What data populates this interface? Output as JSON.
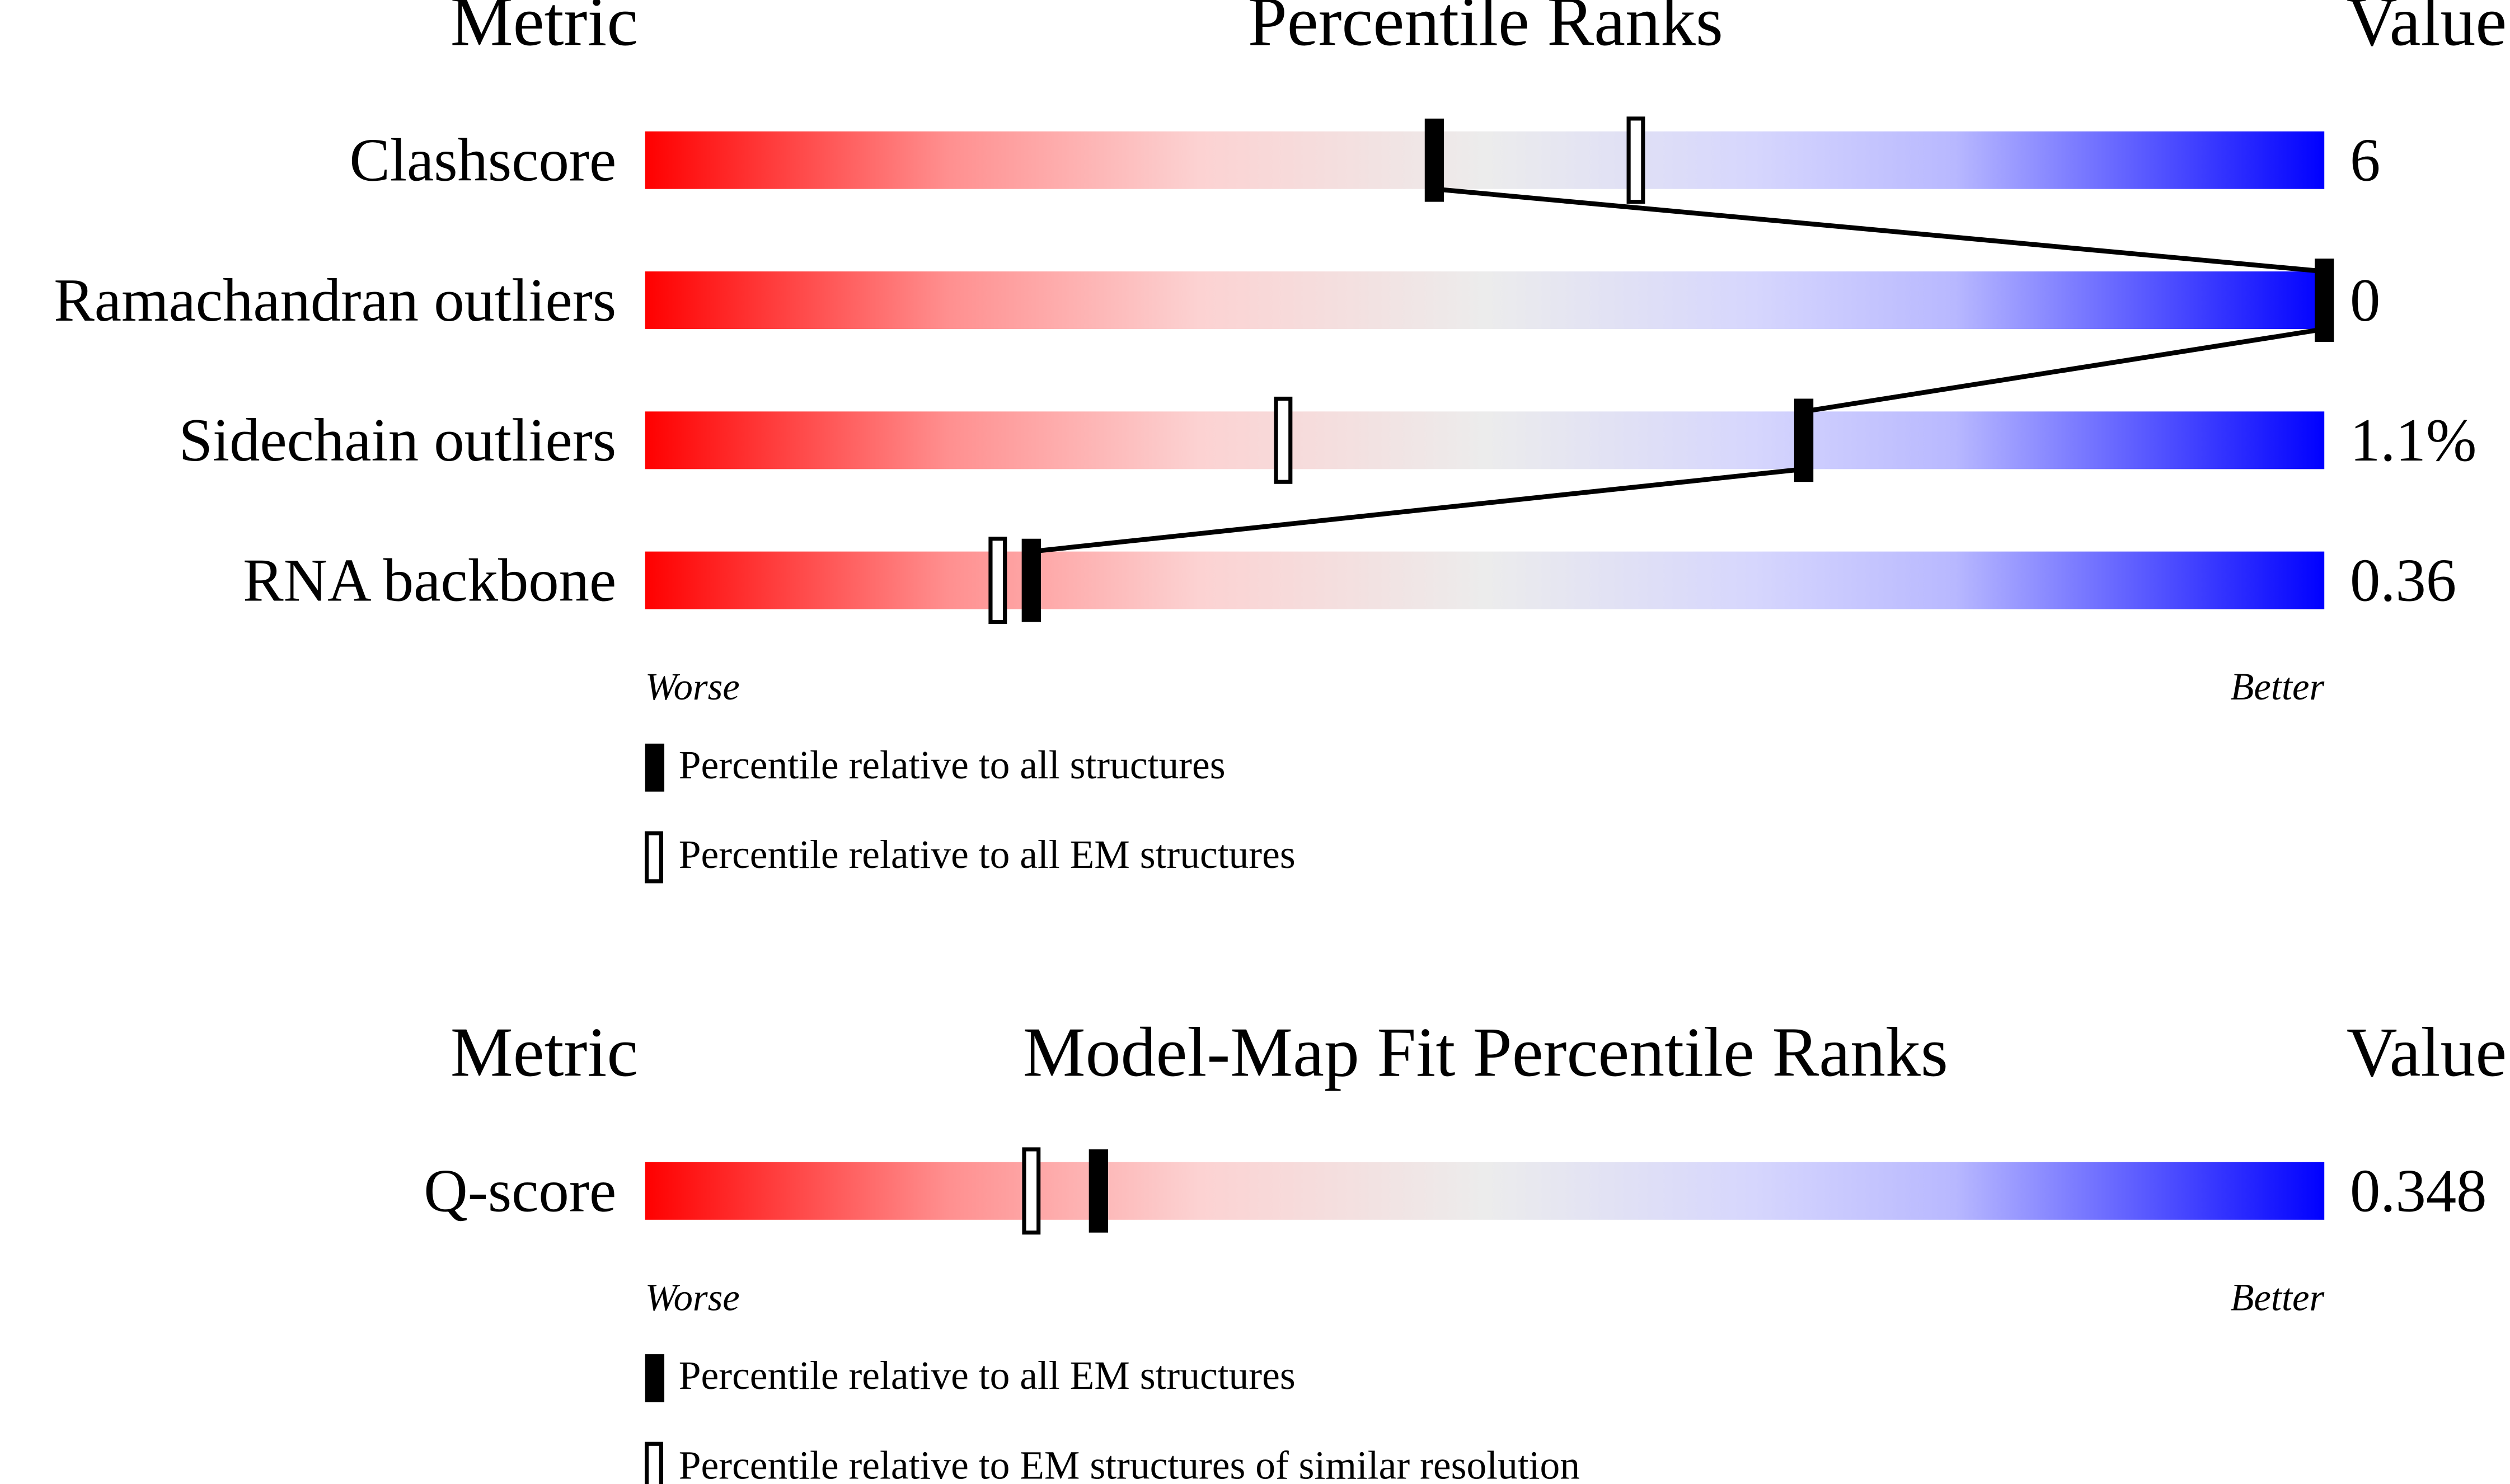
{
  "chart_data": [
    {
      "type": "percentile-slider",
      "metric_header": "Metric",
      "title": "Percentile Ranks",
      "value_header": "Value",
      "categories": [
        "Clashscore",
        "Ramachandran outliers",
        "Sidechain outliers",
        "RNA backbone"
      ],
      "value_labels": [
        "6",
        "0",
        "1.1%",
        "0.36"
      ],
      "series": [
        {
          "name": "Percentile relative to all structures",
          "style": "filled",
          "color": "#000000",
          "values": [
            47,
            100,
            69,
            23
          ]
        },
        {
          "name": "Percentile relative to all EM structures",
          "style": "open",
          "color": "#000000",
          "values": [
            59,
            null,
            38,
            21
          ]
        }
      ],
      "xlim": [
        0,
        100
      ],
      "worse_label": "Worse",
      "better_label": "Better"
    },
    {
      "type": "percentile-slider",
      "metric_header": "Metric",
      "title": "Model-Map Fit Percentile Ranks",
      "value_header": "Value",
      "categories": [
        "Q-score"
      ],
      "value_labels": [
        "0.348"
      ],
      "series": [
        {
          "name": "Percentile relative to all EM structures",
          "style": "filled",
          "color": "#000000",
          "values": [
            27
          ]
        },
        {
          "name": "Percentile relative to EM structures of similar resolution",
          "style": "open",
          "color": "#000000",
          "values": [
            23
          ]
        }
      ],
      "xlim": [
        0,
        100
      ],
      "worse_label": "Worse",
      "better_label": "Better"
    }
  ]
}
